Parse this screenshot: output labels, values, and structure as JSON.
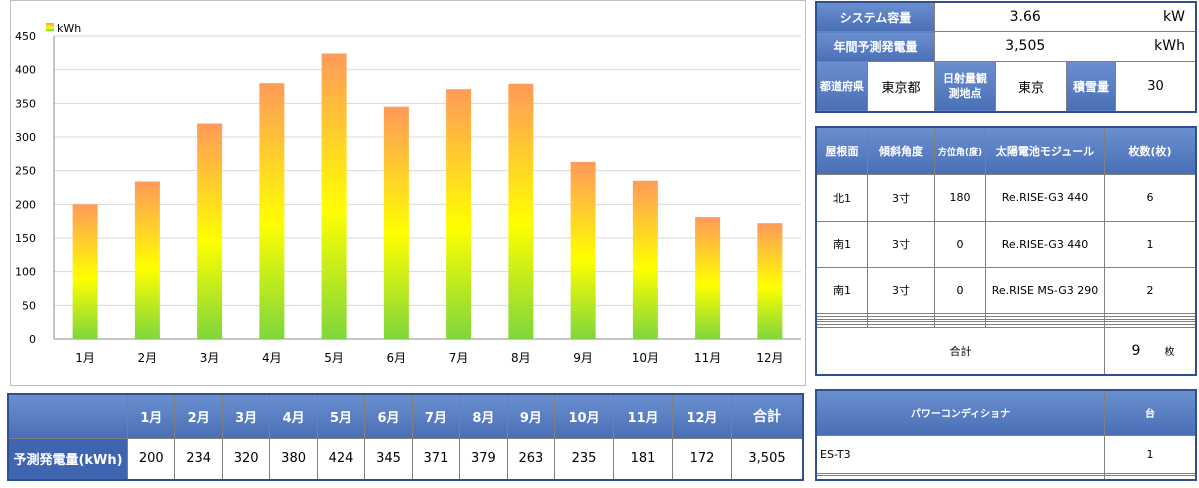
{
  "chart_data": {
    "type": "bar",
    "categories": [
      "1月",
      "2月",
      "3月",
      "4月",
      "5月",
      "6月",
      "7月",
      "8月",
      "9月",
      "10月",
      "11月",
      "12月"
    ],
    "values": [
      200,
      234,
      320,
      380,
      424,
      345,
      371,
      379,
      263,
      235,
      181,
      172
    ],
    "legend": "kWh",
    "ylim": [
      0,
      450
    ],
    "yticks": [
      0,
      50,
      100,
      150,
      200,
      250,
      300,
      350,
      400,
      450
    ],
    "grid": true,
    "legend_position": "top-left",
    "colors": {
      "top": "#ff9a5a",
      "middle": "#ffff00",
      "bottom": "#7fd63c",
      "grid": "#d9d9d9"
    }
  },
  "monthly": {
    "row_label": "予測発電量(kWh)",
    "total_header": "合計",
    "total_value": "3,505",
    "months": [
      "1月",
      "2月",
      "3月",
      "4月",
      "5月",
      "6月",
      "7月",
      "8月",
      "9月",
      "10月",
      "11月",
      "12月"
    ],
    "values": [
      "200",
      "234",
      "320",
      "380",
      "424",
      "345",
      "371",
      "379",
      "263",
      "235",
      "181",
      "172"
    ]
  },
  "system": {
    "capacity_label": "システム容量",
    "capacity_value": "3.66",
    "capacity_unit": "kW",
    "annual_label": "年間予測発電量",
    "annual_value": "3,505",
    "annual_unit": "kWh",
    "pref_label": "都道府県",
    "pref_value": "東京都",
    "site_label": "日射量観測地点",
    "site_value": "東京",
    "snow_label": "積雪量",
    "snow_value": "30"
  },
  "roof": {
    "headers": [
      "屋根面",
      "傾斜角度",
      "方位角(度)",
      "太陽電池モジュール",
      "枚数(枚)"
    ],
    "rows": [
      [
        "北1",
        "3寸",
        "180",
        "Re.RISE-G3 440",
        "6"
      ],
      [
        "南1",
        "3寸",
        "0",
        "Re.RISE-G3 440",
        "1"
      ],
      [
        "南1",
        "3寸",
        "0",
        "Re.RISE MS-G3 290",
        "2"
      ]
    ],
    "total_label": "合計",
    "total_value": "9",
    "total_unit": "枚"
  },
  "pc": {
    "headers": [
      "パワーコンディショナ",
      "台"
    ],
    "rows": [
      [
        "ES-T3",
        "1"
      ]
    ]
  }
}
